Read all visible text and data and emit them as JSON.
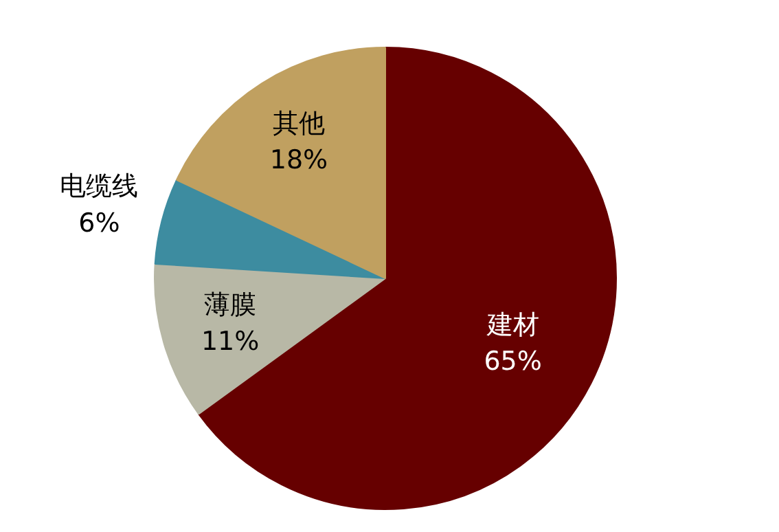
{
  "chart_data": {
    "type": "pie",
    "categories": [
      "建材",
      "薄膜",
      "电缆线",
      "其他"
    ],
    "values": [
      65,
      11,
      6,
      18
    ],
    "value_labels": [
      "65%",
      "11%",
      "6%",
      "18%"
    ],
    "colors": [
      "#660000",
      "#b8b8a6",
      "#3d8ca0",
      "#c0a060"
    ]
  }
}
